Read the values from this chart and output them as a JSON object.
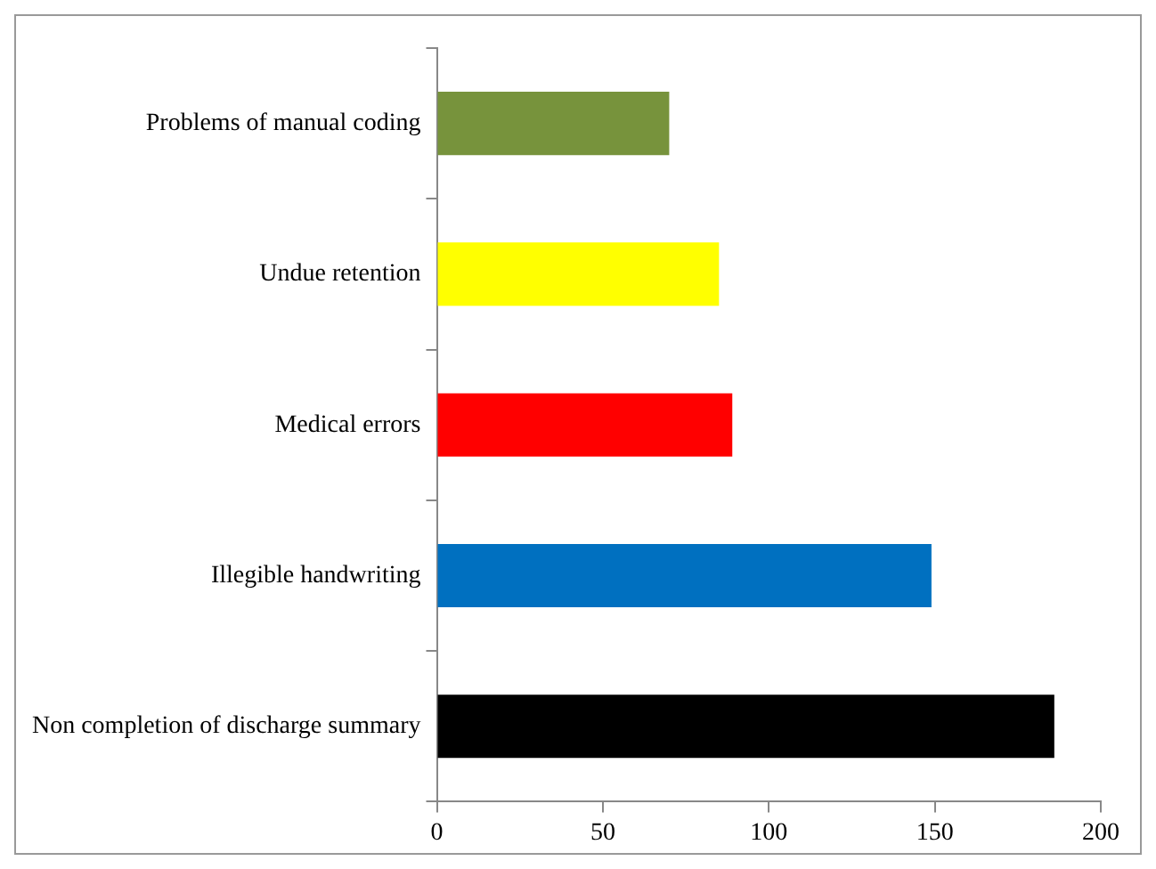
{
  "chart_data": {
    "type": "bar",
    "orientation": "horizontal",
    "categories": [
      "Problems of manual coding",
      "Undue retention",
      "Medical errors",
      "Illegible handwriting",
      "Non completion of discharge summary"
    ],
    "values": [
      70,
      85,
      89,
      149,
      186
    ],
    "colors": [
      "#77933c",
      "#ffff00",
      "#ff0000",
      "#0070c0",
      "#000000"
    ],
    "xlim": [
      0,
      200
    ],
    "xticks": [
      0,
      50,
      100,
      150,
      200
    ],
    "grid": false,
    "legend": false
  }
}
